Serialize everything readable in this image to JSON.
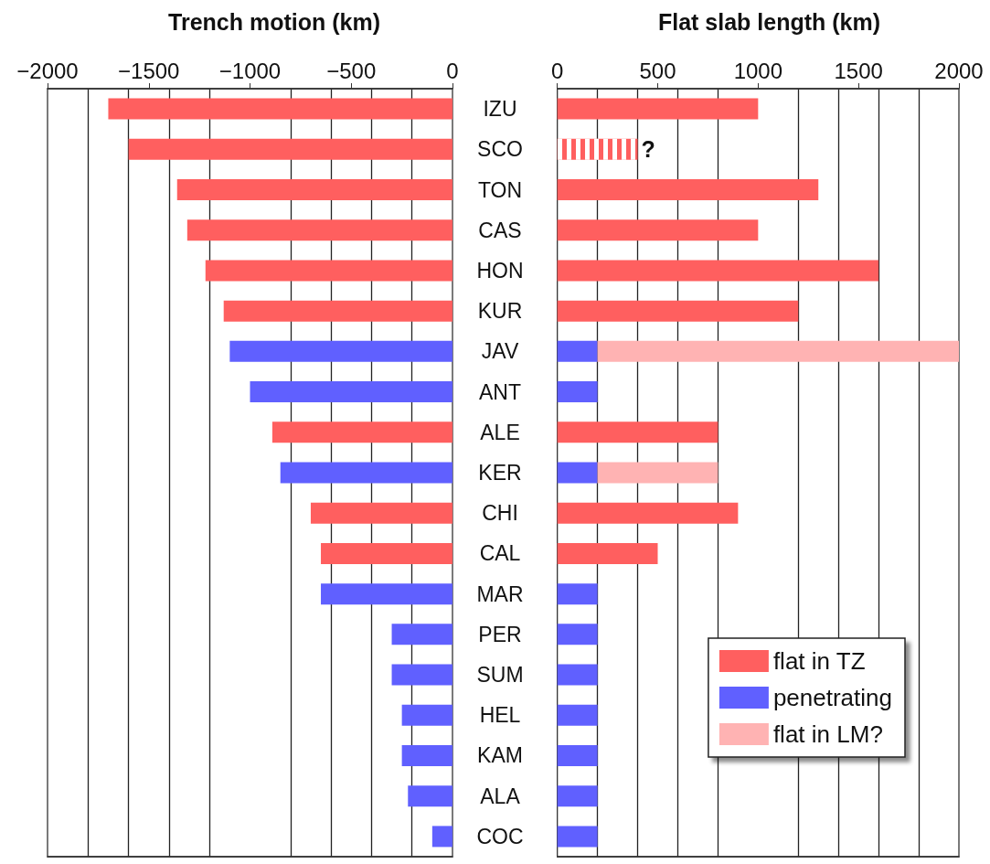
{
  "chart_data": [
    {
      "type": "bar",
      "orientation": "horizontal",
      "title": "Trench motion (km)",
      "categories": [
        "IZU",
        "SCO",
        "TON",
        "CAS",
        "HON",
        "KUR",
        "JAV",
        "ANT",
        "ALE",
        "KER",
        "CHI",
        "CAL",
        "MAR",
        "PER",
        "SUM",
        "HEL",
        "KAM",
        "ALA",
        "COC"
      ],
      "values": [
        -1700,
        -1600,
        -1360,
        -1310,
        -1220,
        -1130,
        -1100,
        -1000,
        -890,
        -850,
        -700,
        -650,
        -650,
        -300,
        -300,
        -250,
        -250,
        -220,
        -100
      ],
      "colors": [
        "#ff5f5f",
        "#ff5f5f",
        "#ff5f5f",
        "#ff5f5f",
        "#ff5f5f",
        "#ff5f5f",
        "#6060ff",
        "#6060ff",
        "#ff5f5f",
        "#6060ff",
        "#ff5f5f",
        "#ff5f5f",
        "#6060ff",
        "#6060ff",
        "#6060ff",
        "#6060ff",
        "#6060ff",
        "#6060ff",
        "#6060ff"
      ],
      "xlim": [
        -2000,
        0
      ],
      "xticks": [
        -2000,
        {
          "value": -1800,
          "label": null
        },
        {
          "value": -1600,
          "label": null
        },
        -1500,
        {
          "value": -1400,
          "label": null
        },
        {
          "value": -1200,
          "label": null
        },
        -1000,
        {
          "value": -800,
          "label": null
        },
        {
          "value": -600,
          "label": null
        },
        -500,
        {
          "value": -400,
          "label": null
        },
        {
          "value": -200,
          "label": null
        },
        0
      ],
      "grid": "x"
    },
    {
      "type": "bar",
      "orientation": "horizontal",
      "title": "Flat slab length (km)",
      "stacked": true,
      "categories": [
        "IZU",
        "SCO",
        "TON",
        "CAS",
        "HON",
        "KUR",
        "JAV",
        "ANT",
        "ALE",
        "KER",
        "CHI",
        "CAL",
        "MAR",
        "PER",
        "SUM",
        "HEL",
        "KAM",
        "ALA",
        "COC"
      ],
      "series": [
        {
          "name": "flat in TZ",
          "color": "#ff5f5f",
          "values": [
            1000,
            null,
            1300,
            1000,
            1600,
            1200,
            null,
            null,
            800,
            null,
            900,
            500,
            null,
            null,
            null,
            null,
            null,
            null,
            null
          ]
        },
        {
          "color": "#ff5f5f",
          "line_style": "dashed",
          "values": [
            null,
            400,
            null,
            null,
            null,
            null,
            null,
            null,
            null,
            null,
            null,
            null,
            null,
            null,
            null,
            null,
            null,
            null,
            null
          ]
        },
        {
          "name": "penetrating",
          "color": "#6060ff",
          "values": [
            null,
            null,
            null,
            null,
            null,
            null,
            200,
            200,
            null,
            200,
            null,
            null,
            200,
            200,
            200,
            200,
            200,
            200,
            200
          ]
        },
        {
          "name": "flat in LM?",
          "color": "#ffb3b3",
          "values": [
            null,
            null,
            null,
            null,
            null,
            null,
            1800,
            null,
            null,
            600,
            null,
            null,
            null,
            null,
            null,
            null,
            null,
            null,
            null
          ]
        }
      ],
      "xlim": [
        0,
        2000
      ],
      "xticks": [
        0,
        {
          "value": 200,
          "label": null
        },
        {
          "value": 400,
          "label": null
        },
        500,
        {
          "value": 600,
          "label": null
        },
        {
          "value": 800,
          "label": null
        },
        1000,
        {
          "value": 1200,
          "label": null
        },
        {
          "value": 1400,
          "label": null
        },
        1500,
        {
          "value": 1600,
          "label": null
        },
        {
          "value": 1800,
          "label": null
        },
        2000
      ],
      "grid": "x",
      "legend": "bottom right",
      "tick_labels": "x",
      "annotations": [
        {
          "text": "?",
          "x": 400,
          "y": "SCO"
        }
      ]
    }
  ]
}
